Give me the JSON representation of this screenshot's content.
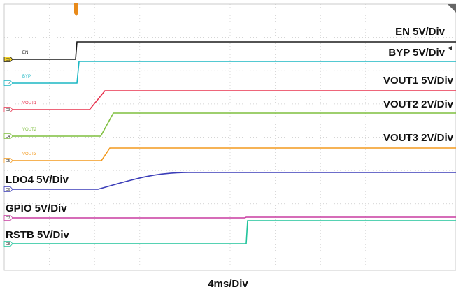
{
  "timebase_label": "4ms/Div",
  "channels": [
    {
      "id": "C1",
      "name": "EN",
      "scale_label": "EN 5V/Div",
      "color": "#1a1a1a",
      "level_low": 85,
      "level_high": 60,
      "rise_start": 108,
      "rise_end": 110
    },
    {
      "id": "C2",
      "name": "BYP",
      "scale_label": "BYP 5V/Div",
      "color": "#1bb7c4",
      "level_low": 119,
      "level_high": 88,
      "rise_start": 110,
      "rise_end": 113
    },
    {
      "id": "C3",
      "name": "VOUT1",
      "scale_label": "VOUT1 5V/Div",
      "color": "#e8334f",
      "level_low": 157,
      "level_high": 130,
      "rise_start": 128,
      "rise_end": 150
    },
    {
      "id": "C4",
      "name": "VOUT2",
      "scale_label": "VOUT2 2V/Div",
      "color": "#7fbf3f",
      "level_low": 195,
      "level_high": 162,
      "rise_start": 144,
      "rise_end": 162
    },
    {
      "id": "C5",
      "name": "VOUT3",
      "scale_label": "VOUT3 2V/Div",
      "color": "#f39a1e",
      "level_low": 230,
      "level_high": 212,
      "rise_start": 145,
      "rise_end": 157
    },
    {
      "id": "C6",
      "name": "",
      "scale_label": "LDO4 5V/Div",
      "color": "#3b3db8",
      "level_low": 271,
      "level_high": 247,
      "rise_start": 140,
      "rise_end": 270
    },
    {
      "id": "C7",
      "name": "",
      "scale_label": "GPIO 5V/Div",
      "color": "#c83ca0",
      "level_low": 312,
      "level_high": 311,
      "rise_start": 350,
      "rise_end": 352
    },
    {
      "id": "C8",
      "name": "",
      "scale_label": "RSTB 5V/Div",
      "color": "#1fc39a",
      "level_low": 349,
      "level_high": 316,
      "rise_start": 352,
      "rise_end": 354
    }
  ]
}
